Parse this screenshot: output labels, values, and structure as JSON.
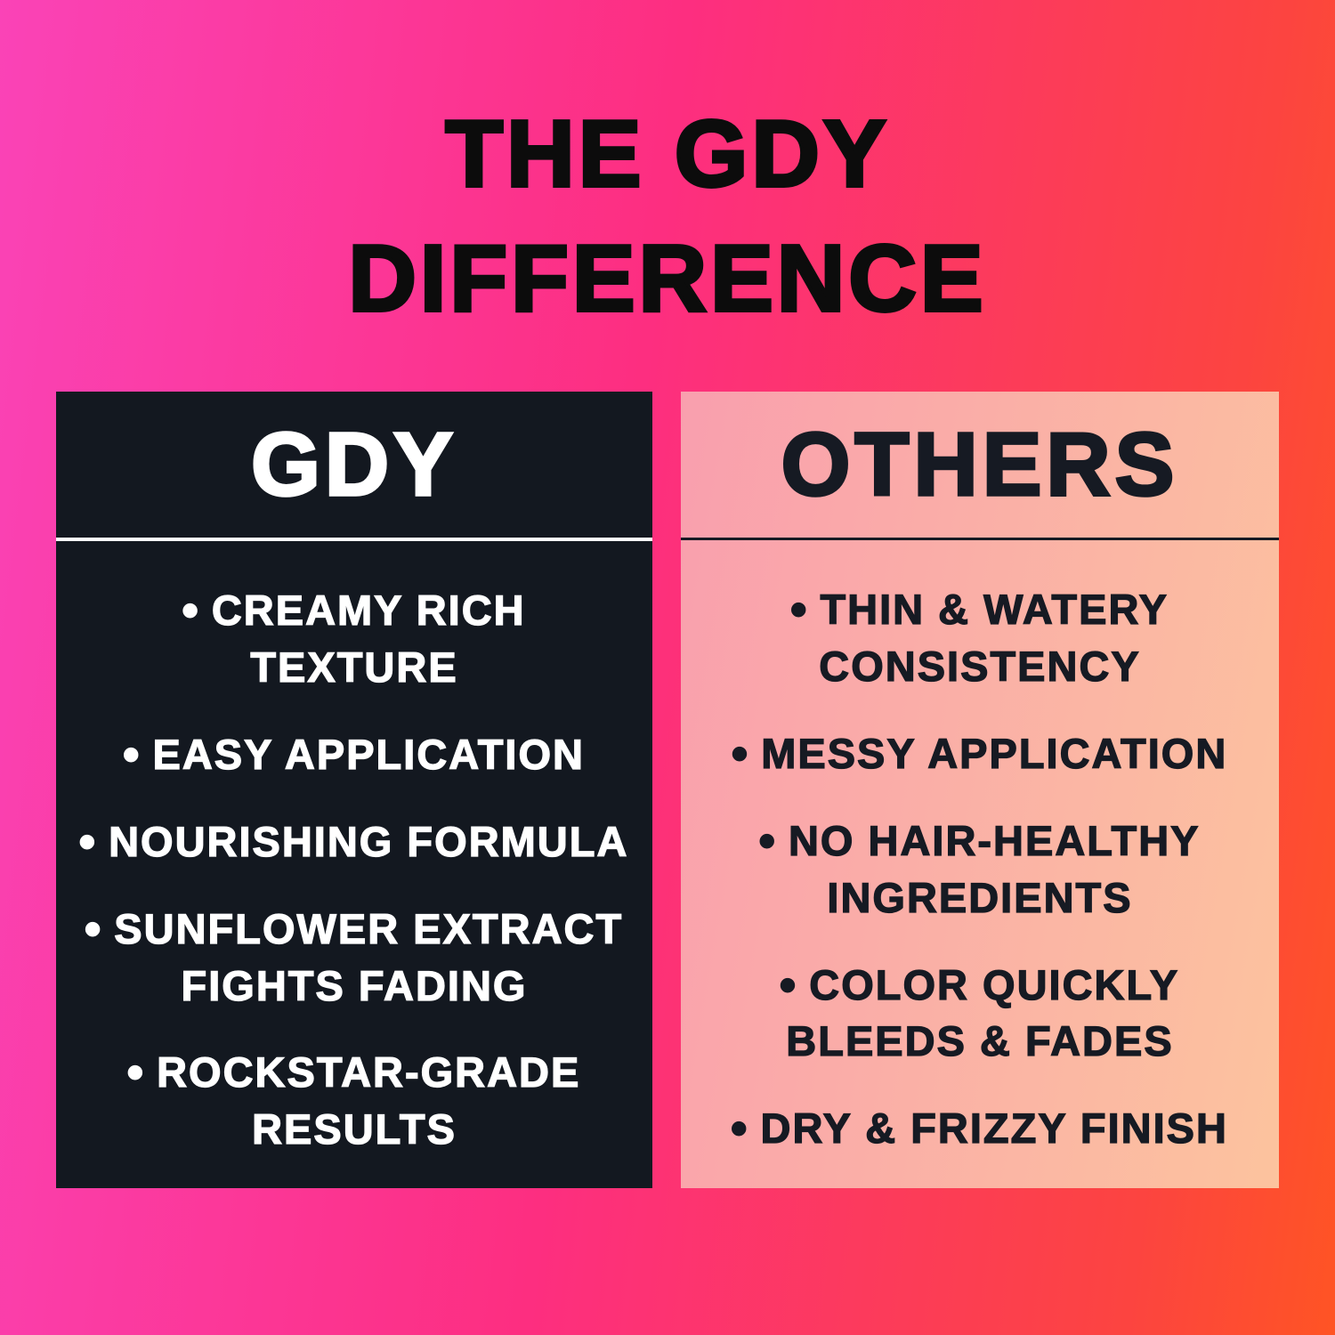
{
  "title": {
    "line1": "THE GDY",
    "line2": "DIFFERENCE"
  },
  "bullet_glyph": "•",
  "left_panel": {
    "header": "GDY",
    "items": [
      {
        "lines": [
          "CREAMY RICH",
          "TEXTURE"
        ]
      },
      {
        "lines": [
          "EASY APPLICATION"
        ]
      },
      {
        "lines": [
          "NOURISHING FORMULA"
        ]
      },
      {
        "lines": [
          "SUNFLOWER EXTRACT",
          "FIGHTS FADING"
        ]
      },
      {
        "lines": [
          "ROCKSTAR-GRADE",
          "RESULTS"
        ]
      }
    ]
  },
  "right_panel": {
    "header": "OTHERS",
    "items": [
      {
        "lines": [
          "THIN & WATERY",
          "CONSISTENCY"
        ]
      },
      {
        "lines": [
          "MESSY APPLICATION"
        ]
      },
      {
        "lines": [
          "NO HAIR-HEALTHY",
          "INGREDIENTS"
        ]
      },
      {
        "lines": [
          "COLOR QUICKLY",
          "BLEEDS & FADES"
        ]
      },
      {
        "lines": [
          "DRY & FRIZZY FINISH"
        ]
      }
    ]
  },
  "colors": {
    "background_gradient": [
      "#fa43b7",
      "#fd2e80",
      "#fc4440",
      "#ff5424"
    ],
    "dark_panel": "#131820",
    "light_panel_gradient": [
      "#f99fae",
      "#fcc39e"
    ],
    "title_text": "#0c0c0c",
    "dark_text": "#161a23",
    "light_text": "#ffffff"
  }
}
